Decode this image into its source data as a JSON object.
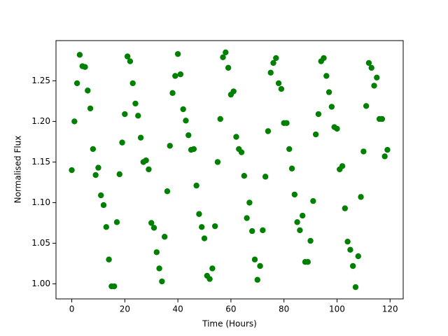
{
  "chart_data": {
    "type": "scatter",
    "xlabel": "Time (Hours)",
    "ylabel": "Normalised Flux",
    "x": [
      0,
      1,
      2,
      3,
      4,
      5,
      6,
      7,
      8,
      9,
      10,
      11,
      12,
      13,
      14,
      15,
      16,
      17,
      18,
      19,
      20,
      21,
      22,
      23,
      24,
      25,
      26,
      27,
      28,
      29,
      30,
      31,
      32,
      33,
      34,
      35,
      36,
      37,
      38,
      39,
      40,
      41,
      42,
      43,
      44,
      45,
      46,
      47,
      48,
      49,
      50,
      51,
      52,
      53,
      54,
      55,
      56,
      57,
      58,
      59,
      60,
      61,
      62,
      63,
      64,
      65,
      66,
      67,
      68,
      69,
      70,
      71,
      72,
      73,
      74,
      75,
      76,
      77,
      78,
      79,
      80,
      81,
      82,
      83,
      84,
      85,
      86,
      87,
      88,
      89,
      90,
      91,
      92,
      93,
      94,
      95,
      96,
      97,
      98,
      99,
      100,
      101,
      102,
      103,
      104,
      105,
      106,
      107,
      108,
      109,
      110,
      111,
      112,
      113,
      114,
      115,
      116,
      117,
      118,
      119
    ],
    "values": [
      1.14,
      1.2,
      1.247,
      1.282,
      1.268,
      1.267,
      1.238,
      1.216,
      1.166,
      1.134,
      1.143,
      1.109,
      1.097,
      1.07,
      1.03,
      0.997,
      0.997,
      1.076,
      1.135,
      1.174,
      1.209,
      1.28,
      1.274,
      1.247,
      1.222,
      1.207,
      1.18,
      1.15,
      1.152,
      1.141,
      1.075,
      1.069,
      1.039,
      1.019,
      1.003,
      1.058,
      1.114,
      1.17,
      1.235,
      1.256,
      1.283,
      1.258,
      1.215,
      1.201,
      1.183,
      1.165,
      1.166,
      1.121,
      1.086,
      1.07,
      1.056,
      1.01,
      1.006,
      1.019,
      1.071,
      1.15,
      1.203,
      1.279,
      1.285,
      1.266,
      1.233,
      1.237,
      1.181,
      1.166,
      1.162,
      1.133,
      1.081,
      1.1,
      1.065,
      1.03,
      1.005,
      1.022,
      1.066,
      1.132,
      1.188,
      1.26,
      1.272,
      1.278,
      1.247,
      1.24,
      1.198,
      1.198,
      1.166,
      1.142,
      1.11,
      1.076,
      1.066,
      1.084,
      1.027,
      1.027,
      1.053,
      1.102,
      1.184,
      1.209,
      1.274,
      1.278,
      1.256,
      1.236,
      1.218,
      1.193,
      1.191,
      1.141,
      1.145,
      1.093,
      1.052,
      1.042,
      1.022,
      0.996,
      1.034,
      1.107,
      1.163,
      1.219,
      1.272,
      1.266,
      1.244,
      1.254,
      1.203,
      1.203,
      1.157,
      1.165
    ],
    "color": "#008000",
    "xlim": [
      -5.95,
      124.95
    ],
    "ylim": [
      0.9815,
      1.2995
    ],
    "xticks": [
      0,
      20,
      40,
      60,
      80,
      100,
      120
    ],
    "yticks": [
      {
        "value": 1.0,
        "label": "1.00"
      },
      {
        "value": 1.05,
        "label": "1.05"
      },
      {
        "value": 1.1,
        "label": "1.10"
      },
      {
        "value": 1.15,
        "label": "1.15"
      },
      {
        "value": 1.2,
        "label": "1.20"
      },
      {
        "value": 1.25,
        "label": "1.25"
      }
    ]
  }
}
